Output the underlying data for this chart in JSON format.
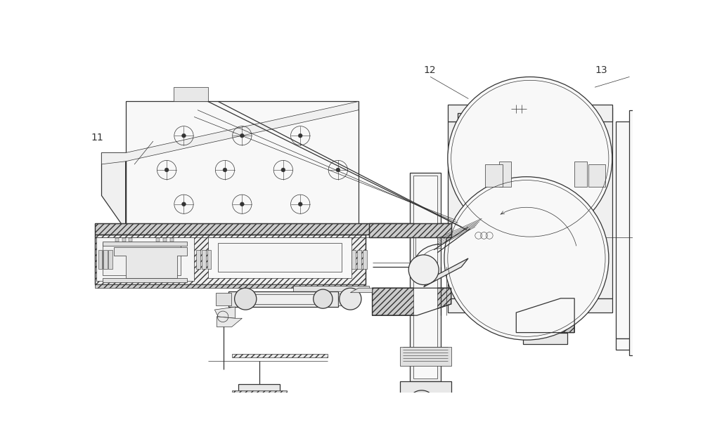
{
  "bg_color": "#ffffff",
  "line_color": "#333333",
  "label_11": "11",
  "label_12": "12",
  "label_13": "13",
  "thin_lw": 0.5,
  "med_lw": 0.9,
  "thick_lw": 1.5
}
